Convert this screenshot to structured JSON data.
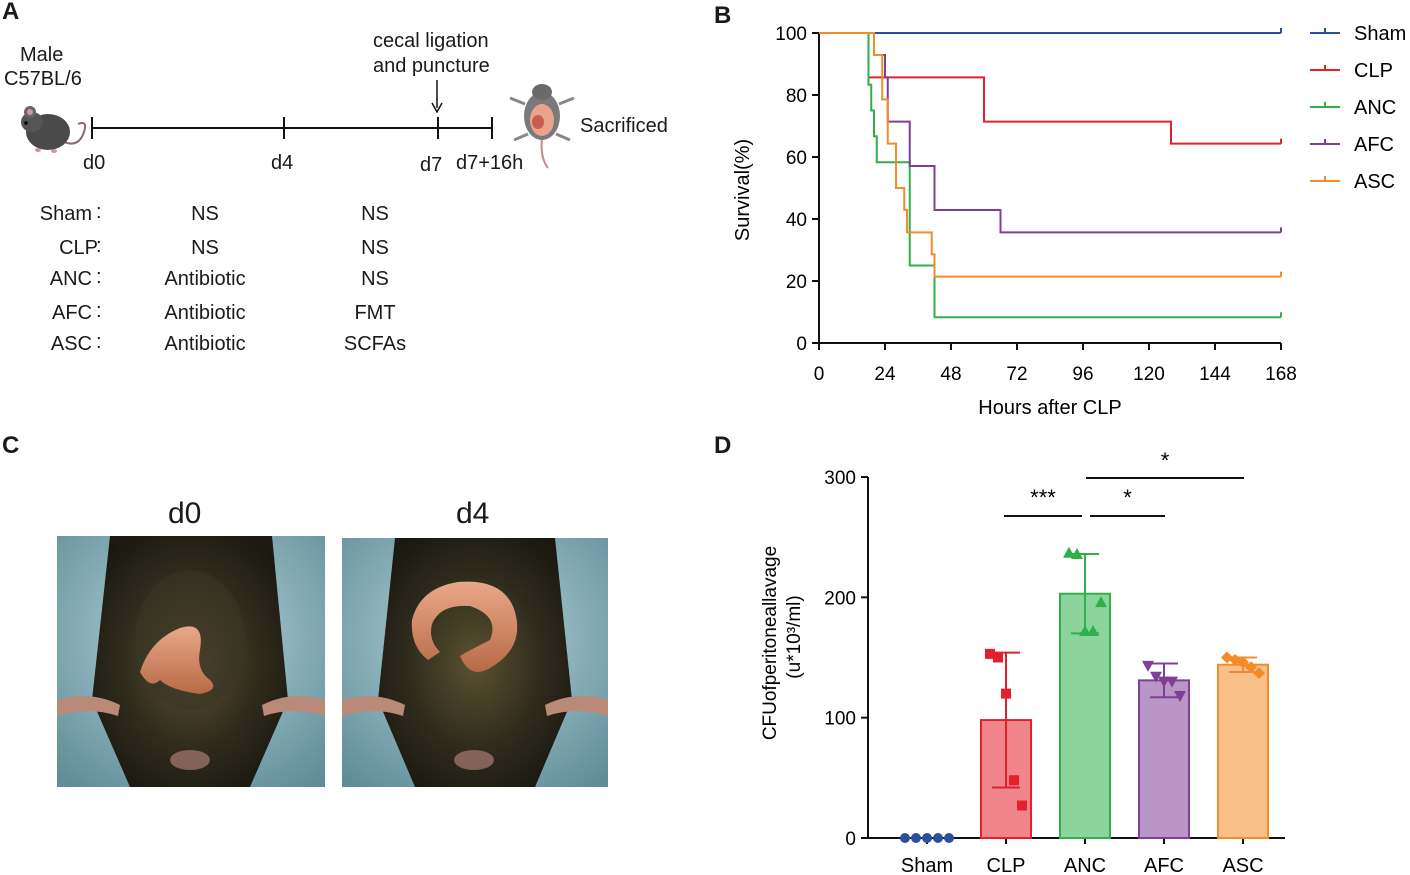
{
  "panels": {
    "a": "A",
    "b": "B",
    "c": "C",
    "d": "D"
  },
  "timeline": {
    "subject_line1": "Male",
    "subject_line2": "C57BL/6",
    "intervention_line1": "cecal ligation",
    "intervention_line2": "and puncture",
    "sacrificed": "Sacrificed",
    "days": [
      "d0",
      "d4",
      "d7",
      "d7+16h"
    ]
  },
  "treatments": [
    {
      "group": "Sham",
      "phase1": "NS",
      "phase2": "NS"
    },
    {
      "group": "CLP",
      "phase1": "NS",
      "phase2": "NS"
    },
    {
      "group": "ANC",
      "phase1": "Antibiotic",
      "phase2": "NS"
    },
    {
      "group": "AFC",
      "phase1": "Antibiotic",
      "phase2": "FMT"
    },
    {
      "group": "ASC",
      "phase1": "Antibiotic",
      "phase2": "SCFAs"
    }
  ],
  "photos": {
    "left_label": "d0",
    "right_label": "d4"
  },
  "colors": {
    "Sham": "#2a4fa0",
    "CLP": "#e3212d",
    "ANC": "#2fb04a",
    "AFC": "#7f3f98",
    "ASC": "#f28c28"
  },
  "chart_data": [
    {
      "type": "line",
      "subtype": "kaplan-meier",
      "title": "",
      "xlabel": "Hours after CLP",
      "ylabel": "Survival(%)",
      "xlim": [
        0,
        168
      ],
      "ylim": [
        0,
        100
      ],
      "xticks": [
        0,
        24,
        48,
        72,
        96,
        120,
        144,
        168
      ],
      "yticks": [
        0,
        20,
        40,
        60,
        80,
        100
      ],
      "legend": [
        "Sham",
        "CLP",
        "ANC",
        "AFC",
        "ASC"
      ],
      "series": [
        {
          "name": "Sham",
          "steps": [
            [
              0,
              100
            ],
            [
              168,
              100
            ]
          ]
        },
        {
          "name": "CLP",
          "steps": [
            [
              0,
              100
            ],
            [
              18,
              85.7
            ],
            [
              60,
              71.4
            ],
            [
              128,
              64.3
            ],
            [
              168,
              64.3
            ]
          ]
        },
        {
          "name": "ANC",
          "steps": [
            [
              0,
              100
            ],
            [
              18,
              83.3
            ],
            [
              19,
              75
            ],
            [
              20,
              66.7
            ],
            [
              21,
              58.3
            ],
            [
              33,
              25
            ],
            [
              42,
              8.3
            ],
            [
              168,
              8.3
            ]
          ]
        },
        {
          "name": "AFC",
          "steps": [
            [
              0,
              100
            ],
            [
              20,
              92.9
            ],
            [
              24,
              85.7
            ],
            [
              25,
              71.4
            ],
            [
              33,
              57.1
            ],
            [
              42,
              42.9
            ],
            [
              66,
              35.7
            ],
            [
              168,
              35.7
            ]
          ]
        },
        {
          "name": "ASC",
          "steps": [
            [
              0,
              100
            ],
            [
              20,
              92.9
            ],
            [
              23,
              78.6
            ],
            [
              25,
              64.3
            ],
            [
              28,
              50
            ],
            [
              31,
              42.9
            ],
            [
              32,
              35.7
            ],
            [
              38,
              35.7
            ],
            [
              41,
              28.6
            ],
            [
              42,
              21.4
            ],
            [
              168,
              21.4
            ]
          ]
        }
      ]
    },
    {
      "type": "bar",
      "title": "",
      "xlabel": "",
      "ylabel_line1": "CFUofperitoneallavage",
      "ylabel_line2": "(u*10³/ml)",
      "ylim": [
        0,
        300
      ],
      "yticks": [
        0,
        100,
        200,
        300
      ],
      "categories": [
        "Sham",
        "CLP",
        "ANC",
        "AFC",
        "ASC"
      ],
      "values": [
        0,
        98,
        203,
        131,
        144
      ],
      "sd": [
        0,
        56,
        33,
        14,
        6
      ],
      "points": [
        [
          0,
          0,
          0,
          0,
          0
        ],
        [
          153,
          150,
          120,
          48,
          27
        ],
        [
          237,
          236,
          172,
          172,
          196
        ],
        [
          143,
          134,
          130,
          130,
          118
        ],
        [
          150,
          148,
          146,
          142,
          137
        ]
      ],
      "markers": [
        "circle",
        "square",
        "triangle-up",
        "triangle-down",
        "diamond"
      ],
      "significance": [
        {
          "from": "CLP",
          "to": "ANC",
          "label": "***"
        },
        {
          "from": "ANC",
          "to": "AFC",
          "label": "*"
        },
        {
          "from": "ANC",
          "to": "ASC",
          "label": "*"
        }
      ]
    }
  ]
}
